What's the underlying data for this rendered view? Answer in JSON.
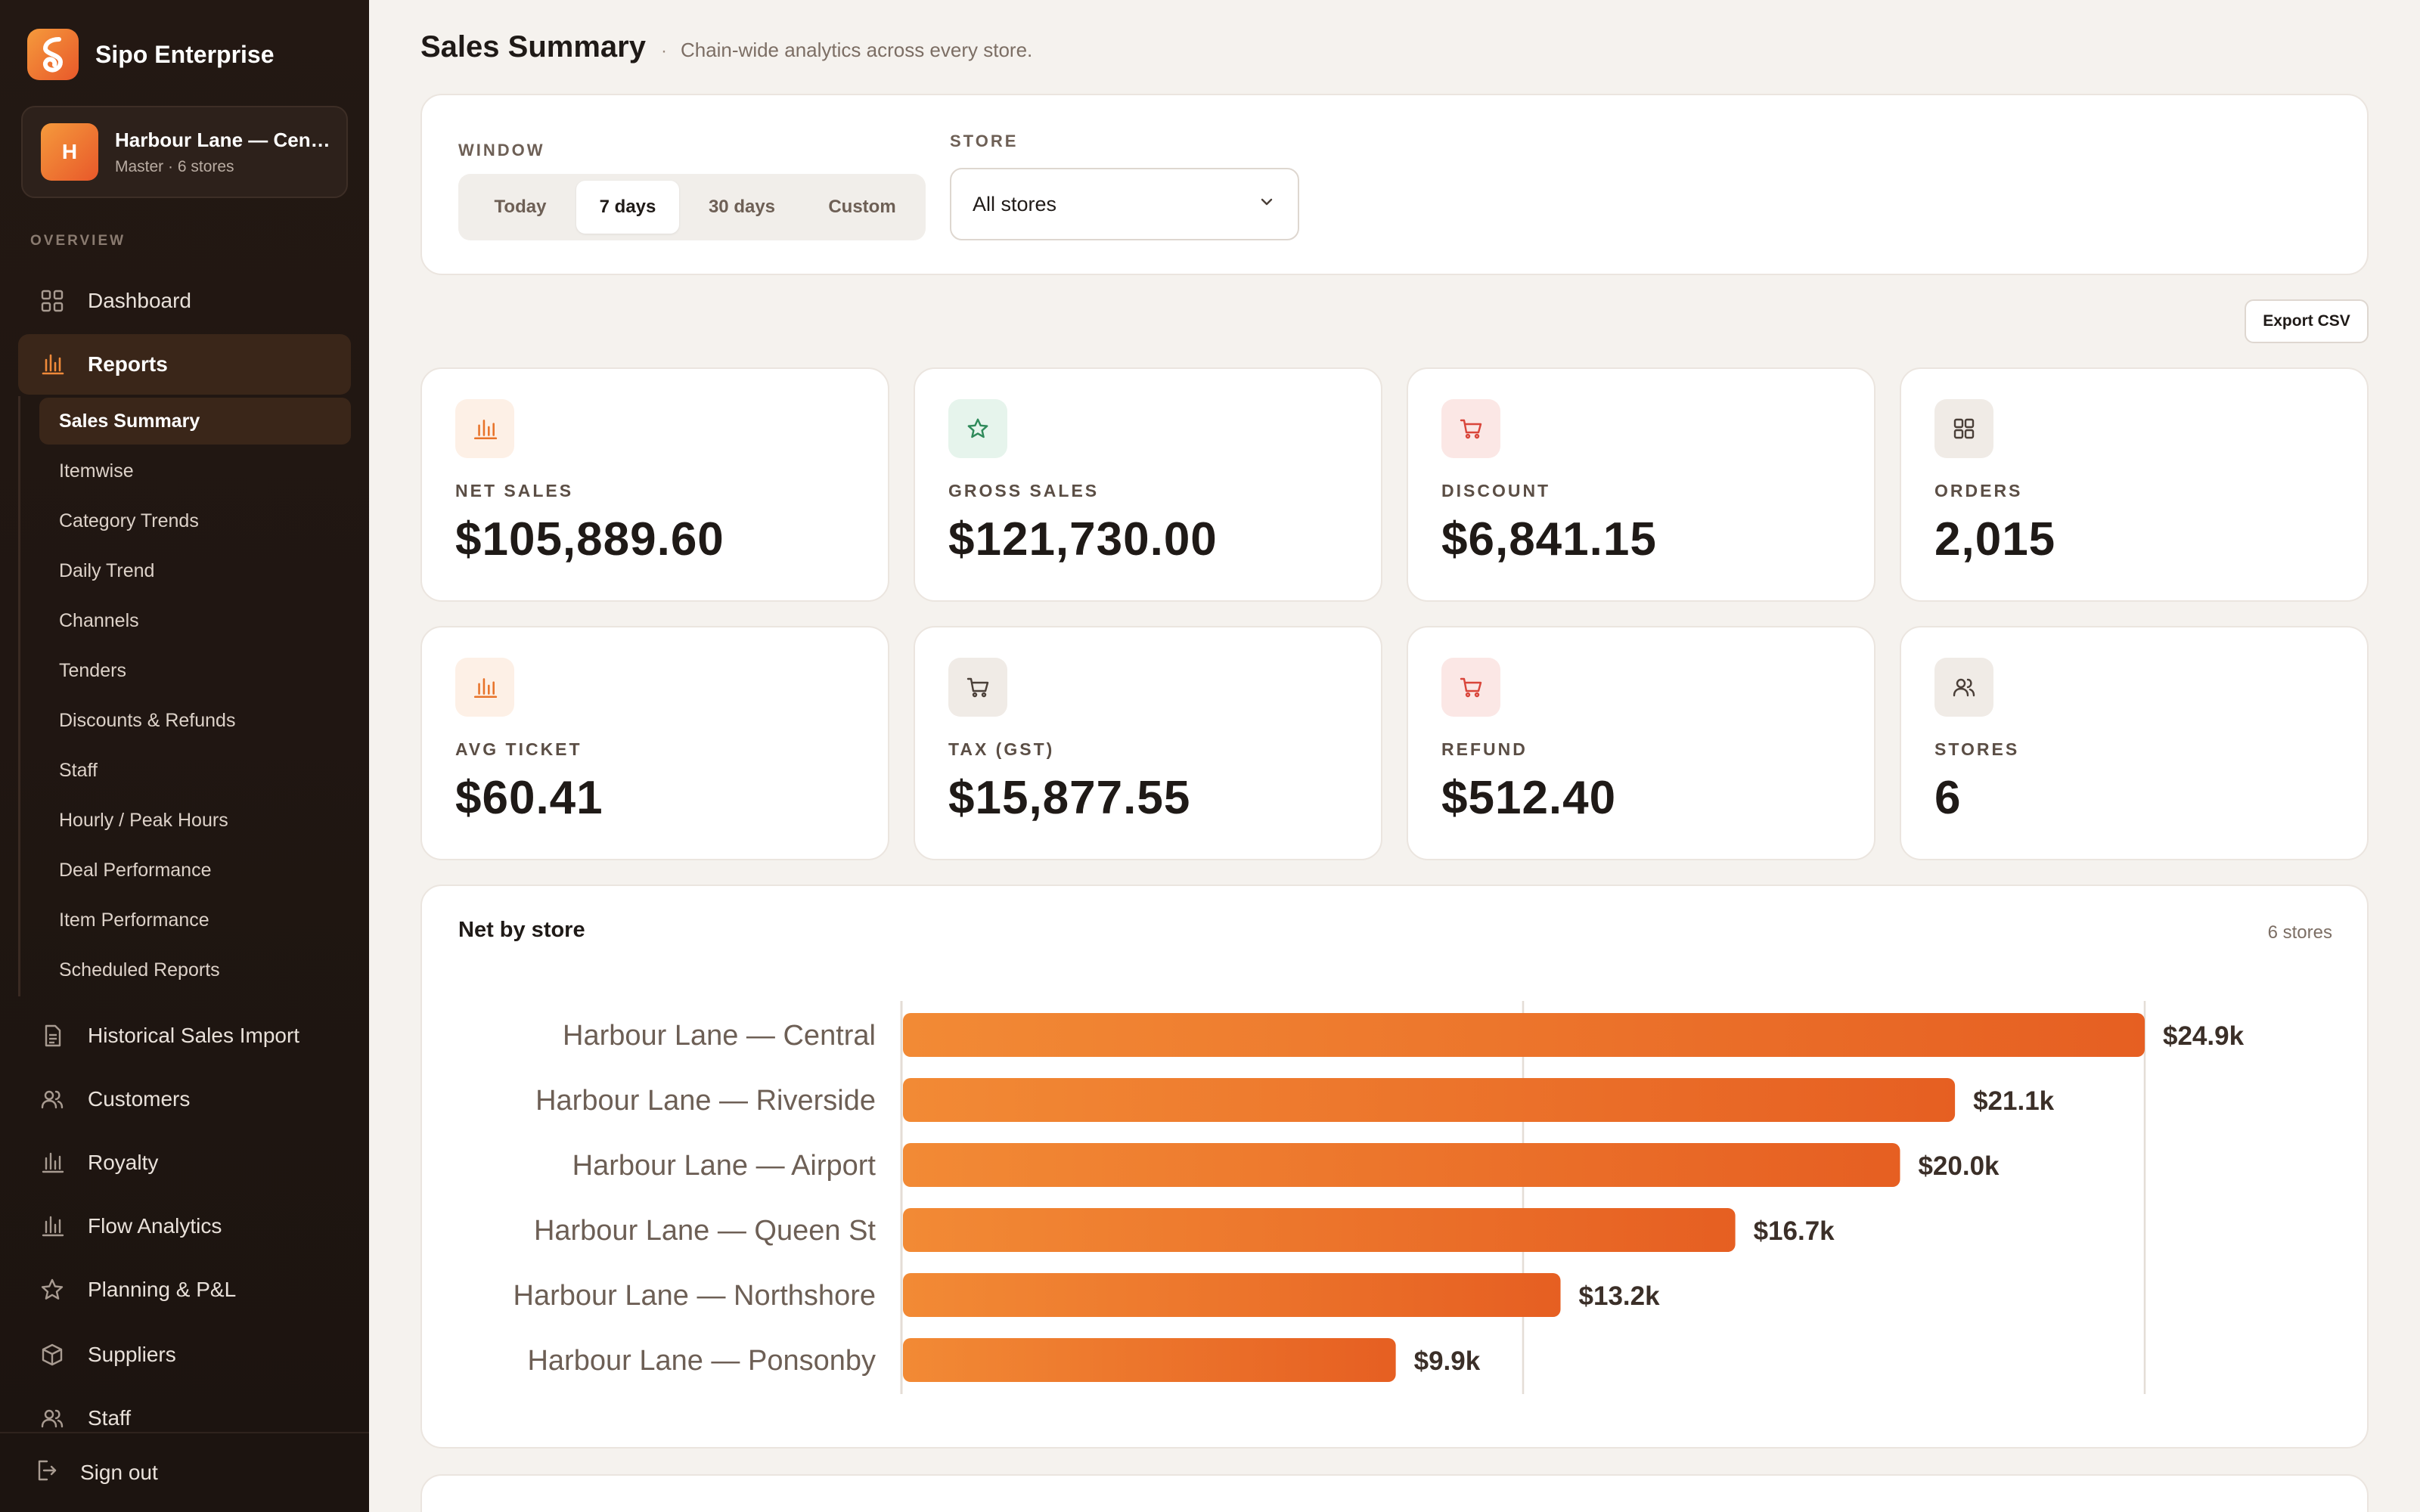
{
  "app": {
    "name": "Sipo Enterprise"
  },
  "store_switcher": {
    "initial": "H",
    "name": "Harbour Lane — Central",
    "sub": "Master · 6 stores"
  },
  "sidebar": {
    "section": "OVERVIEW",
    "dashboard": "Dashboard",
    "reports": "Reports",
    "report_items": [
      "Sales Summary",
      "Itemwise",
      "Category Trends",
      "Daily Trend",
      "Channels",
      "Tenders",
      "Discounts & Refunds",
      "Staff",
      "Hourly / Peak Hours",
      "Deal Performance",
      "Item Performance",
      "Scheduled Reports"
    ],
    "other_items": [
      "Historical Sales Import",
      "Customers",
      "Royalty",
      "Flow Analytics",
      "Planning & P&L",
      "Suppliers",
      "Staff"
    ],
    "sign_out": "Sign out"
  },
  "header": {
    "title": "Sales Summary",
    "separator": "·",
    "subtitle": "Chain-wide analytics across every store."
  },
  "filters": {
    "window_label": "WINDOW",
    "windows": [
      "Today",
      "7 days",
      "30 days",
      "Custom"
    ],
    "active_window": "7 days",
    "store_label": "STORE",
    "store_value": "All stores"
  },
  "export_label": "Export CSV",
  "stats": [
    {
      "label": "NET SALES",
      "value": "$105,889.60",
      "icon": "bar-chart-icon",
      "color": "#e8732a"
    },
    {
      "label": "GROSS SALES",
      "value": "$121,730.00",
      "icon": "star-icon",
      "color": "#2f8a5a"
    },
    {
      "label": "DISCOUNT",
      "value": "$6,841.15",
      "icon": "cart-icon",
      "color": "#d9453a"
    },
    {
      "label": "ORDERS",
      "value": "2,015",
      "icon": "grid-icon",
      "color": "#4a3f38"
    },
    {
      "label": "AVG TICKET",
      "value": "$60.41",
      "icon": "bar-chart-icon",
      "color": "#e8732a"
    },
    {
      "label": "TAX (GST)",
      "value": "$15,877.55",
      "icon": "cart-icon",
      "color": "#4a3f38"
    },
    {
      "label": "REFUND",
      "value": "$512.40",
      "icon": "cart-icon",
      "color": "#d9453a"
    },
    {
      "label": "STORES",
      "value": "6",
      "icon": "users-icon",
      "color": "#4a3f38"
    }
  ],
  "chart": {
    "title": "Net by store",
    "meta": "6 stores"
  },
  "chart_data": {
    "type": "bar",
    "orientation": "horizontal",
    "title": "Net by store",
    "categories": [
      "Harbour Lane — Central",
      "Harbour Lane — Riverside",
      "Harbour Lane — Airport",
      "Harbour Lane — Queen St",
      "Harbour Lane — Northshore",
      "Harbour Lane — Ponsonby"
    ],
    "values": [
      24.9,
      21.1,
      20.0,
      16.7,
      13.2,
      9.9
    ],
    "value_labels": [
      "$24.9k",
      "$21.1k",
      "$20.0k",
      "$16.7k",
      "$13.2k",
      "$9.9k"
    ],
    "unit": "$k",
    "xlim": [
      0,
      24.9
    ],
    "grid": true,
    "colors": {
      "bar_start": "#f28a35",
      "bar_end": "#e65f22"
    }
  }
}
